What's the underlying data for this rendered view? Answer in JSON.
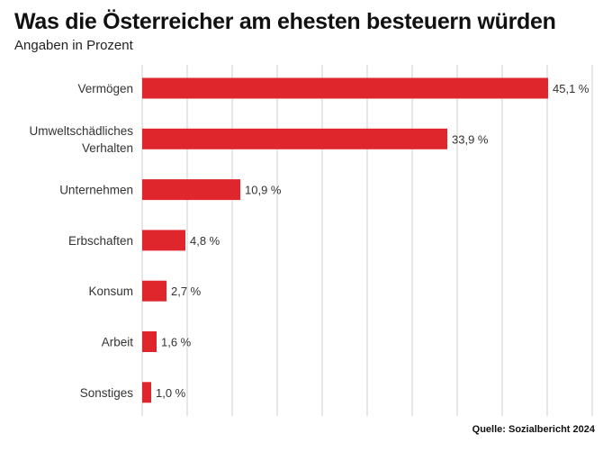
{
  "header": {
    "title": "Was die Österreicher am ehesten besteuern würden",
    "subtitle": "Angaben in Prozent"
  },
  "source": "Quelle: Sozialbericht 2024",
  "colors": {
    "bar": "#e0262d",
    "grid": "#cfcfcf"
  },
  "chart_data": {
    "type": "bar",
    "orientation": "horizontal",
    "title": "Was die Österreicher am ehesten besteuern würden",
    "subtitle": "Angaben in Prozent",
    "categories": [
      [
        "Vermögen"
      ],
      [
        "Umweltschädliches",
        "Verhalten"
      ],
      [
        "Unternehmen"
      ],
      [
        "Erbschaften"
      ],
      [
        "Konsum"
      ],
      [
        "Arbeit"
      ],
      [
        "Sonstiges"
      ]
    ],
    "values": [
      45.1,
      33.9,
      10.9,
      4.8,
      2.7,
      1.6,
      1.0
    ],
    "value_labels": [
      "45,1 %",
      "33,9 %",
      "10,9 %",
      "4,8 %",
      "2,7 %",
      "1,6 %",
      "1,0 %"
    ],
    "xlim": [
      0,
      50
    ],
    "grid_step": 5,
    "grid": true,
    "xlabel": "",
    "ylabel": ""
  }
}
